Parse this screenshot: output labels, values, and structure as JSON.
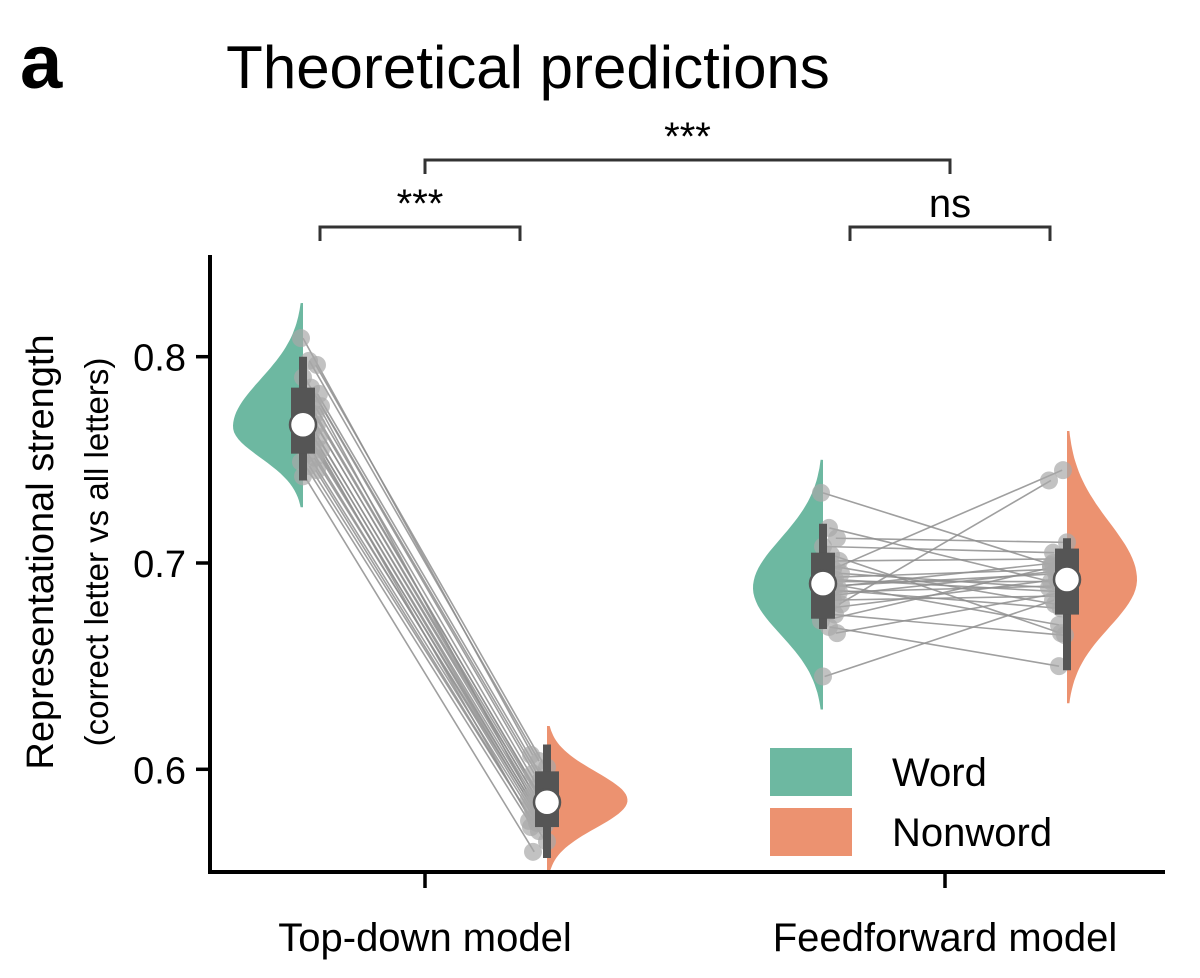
{
  "panel_label": "a",
  "chart_data": {
    "type": "violin",
    "title": "Theoretical predictions",
    "ylabel": "Representational strength",
    "ylabel_sub": "(correct letter vs all letters)",
    "xlabel": "",
    "ylim": [
      0.55,
      0.85
    ],
    "yticks": [
      0.6,
      0.7,
      0.8
    ],
    "ytick_labels": [
      "0.6",
      "0.7",
      "0.8"
    ],
    "categories": [
      "Top-down model",
      "Feedforward model"
    ],
    "conditions": [
      "Word",
      "Nonword"
    ],
    "colors": {
      "Word": "#6db8a1",
      "Nonword": "#ec9270",
      "box": "#555555",
      "points": "#a8a8a8",
      "lines": "#8f8f8f"
    },
    "legend": {
      "position": "bottom-right",
      "entries": [
        "Word",
        "Nonword"
      ]
    },
    "groups": [
      {
        "name": "Top-down model",
        "word": {
          "median": 0.767,
          "q1": 0.753,
          "q3": 0.785,
          "whisker": [
            0.74,
            0.8
          ],
          "kde_range": [
            0.727,
            0.826
          ],
          "kde_peak": 0.766,
          "kde_width": 1.0
        },
        "nonword": {
          "median": 0.584,
          "q1": 0.572,
          "q3": 0.599,
          "whisker": [
            0.557,
            0.612
          ],
          "kde_range": [
            0.55,
            0.621
          ],
          "kde_peak": 0.585,
          "kde_width": 1.15
        },
        "word_points": [
          0.809,
          0.798,
          0.796,
          0.79,
          0.785,
          0.782,
          0.78,
          0.778,
          0.776,
          0.774,
          0.772,
          0.77,
          0.768,
          0.767,
          0.765,
          0.763,
          0.761,
          0.759,
          0.757,
          0.755,
          0.753,
          0.751,
          0.749,
          0.747,
          0.745,
          0.742
        ],
        "nonword_points": [
          0.607,
          0.604,
          0.601,
          0.598,
          0.595,
          0.592,
          0.59,
          0.588,
          0.586,
          0.585,
          0.584,
          0.583,
          0.582,
          0.581,
          0.58,
          0.579,
          0.578,
          0.577,
          0.576,
          0.575,
          0.574,
          0.573,
          0.572,
          0.57,
          0.565,
          0.56
        ]
      },
      {
        "name": "Feedforward model",
        "word": {
          "median": 0.69,
          "q1": 0.673,
          "q3": 0.705,
          "whisker": [
            0.668,
            0.719
          ],
          "kde_range": [
            0.629,
            0.75
          ],
          "kde_peak": 0.688,
          "kde_width": 1.0
        },
        "nonword": {
          "median": 0.692,
          "q1": 0.675,
          "q3": 0.707,
          "whisker": [
            0.648,
            0.712
          ],
          "kde_range": [
            0.632,
            0.764
          ],
          "kde_peak": 0.692,
          "kde_width": 1.0
        },
        "word_points": [
          0.734,
          0.717,
          0.712,
          0.708,
          0.704,
          0.701,
          0.699,
          0.697,
          0.695,
          0.693,
          0.692,
          0.691,
          0.69,
          0.689,
          0.688,
          0.687,
          0.686,
          0.684,
          0.682,
          0.68,
          0.678,
          0.675,
          0.672,
          0.669,
          0.666,
          0.645
        ],
        "nonword_points": [
          0.699,
          0.69,
          0.71,
          0.705,
          0.666,
          0.702,
          0.68,
          0.745,
          0.688,
          0.697,
          0.686,
          0.691,
          0.67,
          0.695,
          0.7,
          0.678,
          0.689,
          0.696,
          0.684,
          0.74,
          0.692,
          0.665,
          0.698,
          0.65,
          0.686,
          0.682
        ]
      }
    ],
    "significance": [
      {
        "label": "***",
        "between": "Top-down Word vs Nonword"
      },
      {
        "label": "ns",
        "between": "Feedforward Word vs Nonword"
      },
      {
        "label": "***",
        "between": "Top-down vs Feedforward"
      }
    ]
  }
}
